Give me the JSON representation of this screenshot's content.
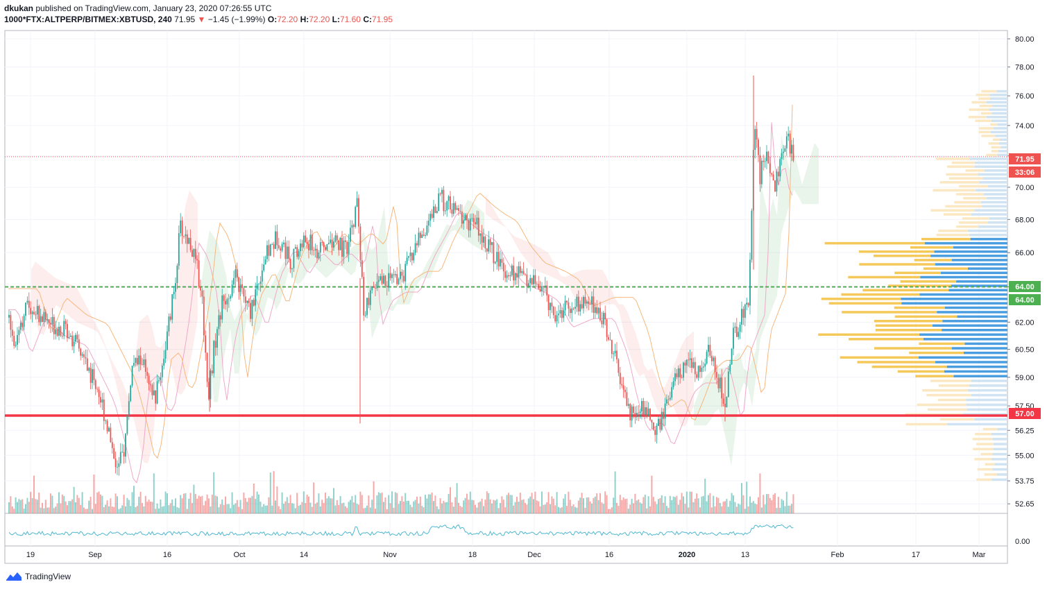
{
  "header": {
    "author": "dkukan",
    "published_text": "published on TradingView.com, January 23, 2020 07:26:55 UTC",
    "symbol": "1000*FTX:ALTPERP/BITMEX:XBTUSD, 240",
    "last": "71.95",
    "change_arrow": "▼",
    "change": "−1.45 (−1.99%)",
    "o_label": "O:",
    "o_value": "72.20",
    "h_label": "H:",
    "h_value": "72.20",
    "l_label": "L:",
    "l_value": "71.60",
    "c_label": "C:",
    "c_value": "71.95"
  },
  "footer": {
    "brand": "TradingView",
    "logo_icon": "tradingview-logo-icon"
  },
  "chart_data": {
    "type": "candlestick",
    "price_axis": {
      "ticks": [
        "80.00",
        "78.00",
        "76.00",
        "74.00",
        "72.00",
        "70.00",
        "68.00",
        "66.00",
        "64.00",
        "62.00",
        "60.50",
        "59.00",
        "57.50",
        "56.25",
        "55.00",
        "53.75",
        "52.65"
      ],
      "ylim": [
        52.2,
        80.6
      ],
      "scale": "log"
    },
    "indicator_axis": {
      "ticks": [
        "0.00"
      ]
    },
    "time_axis": {
      "ticks": [
        "19",
        "Sep",
        "16",
        "Oct",
        "14",
        "Nov",
        "18",
        "Dec",
        "16",
        "2020",
        "13",
        "Feb",
        "17",
        "Mar"
      ]
    },
    "price_labels": [
      {
        "text": "71.95",
        "value": 71.95,
        "color": "#ef5350"
      },
      {
        "text": "33:06",
        "color": "#ef5350"
      },
      {
        "text": "64.00",
        "value": 64.0,
        "color": "#4caf50"
      },
      {
        "text": "64.00",
        "color": "#4caf50"
      },
      {
        "text": "57.00",
        "value": 57.0,
        "color": "#f23645"
      }
    ],
    "horizontal_lines": [
      {
        "value": 64.0,
        "color": "#4caf50",
        "style": "dashed"
      },
      {
        "value": 57.0,
        "color": "#f23645",
        "style": "solid"
      },
      {
        "value": 71.95,
        "color": "#ef5350",
        "style": "dotted"
      }
    ],
    "price_path": [
      [
        0,
        63.5
      ],
      [
        20,
        61.0
      ],
      [
        40,
        63.0
      ],
      [
        70,
        62.0
      ],
      [
        100,
        61.5
      ],
      [
        120,
        60.0
      ],
      [
        140,
        58.5
      ],
      [
        155,
        56.5
      ],
      [
        170,
        54.2
      ],
      [
        180,
        55.5
      ],
      [
        190,
        59.5
      ],
      [
        205,
        60.0
      ],
      [
        215,
        58.2
      ],
      [
        225,
        58.0
      ],
      [
        240,
        61.0
      ],
      [
        250,
        63.5
      ],
      [
        260,
        67.5
      ],
      [
        275,
        66.5
      ],
      [
        290,
        64.0
      ],
      [
        300,
        58.0
      ],
      [
        310,
        61.0
      ],
      [
        320,
        63.0
      ],
      [
        340,
        64.5
      ],
      [
        360,
        62.5
      ],
      [
        380,
        65.5
      ],
      [
        400,
        67.0
      ],
      [
        420,
        65.5
      ],
      [
        440,
        66.8
      ],
      [
        460,
        66.0
      ],
      [
        480,
        66.8
      ],
      [
        500,
        66.0
      ],
      [
        515,
        69.0
      ],
      [
        520,
        65.0
      ],
      [
        525,
        62.5
      ],
      [
        540,
        64.0
      ],
      [
        560,
        64.5
      ],
      [
        580,
        64.5
      ],
      [
        600,
        66.5
      ],
      [
        620,
        68.0
      ],
      [
        635,
        69.3
      ],
      [
        655,
        68.5
      ],
      [
        670,
        68.0
      ],
      [
        690,
        67.5
      ],
      [
        710,
        66.0
      ],
      [
        730,
        65.0
      ],
      [
        760,
        64.5
      ],
      [
        780,
        64.0
      ],
      [
        800,
        62.5
      ],
      [
        830,
        63.0
      ],
      [
        860,
        63.0
      ],
      [
        880,
        61.0
      ],
      [
        895,
        58.5
      ],
      [
        910,
        57.0
      ],
      [
        930,
        57.5
      ],
      [
        945,
        56.2
      ],
      [
        960,
        57.5
      ],
      [
        975,
        59.0
      ],
      [
        990,
        59.5
      ],
      [
        1010,
        59.5
      ],
      [
        1025,
        60.5
      ],
      [
        1035,
        59.0
      ],
      [
        1045,
        57.3
      ],
      [
        1055,
        61.0
      ],
      [
        1070,
        62.5
      ],
      [
        1080,
        63.5
      ],
      [
        1087,
        75.0
      ],
      [
        1095,
        70.5
      ],
      [
        1105,
        72.5
      ],
      [
        1115,
        70.0
      ],
      [
        1125,
        71.5
      ],
      [
        1135,
        73.0
      ],
      [
        1145,
        71.95
      ]
    ],
    "volume_profile_note": "visible range volume profile on right edge (blue/yellow bars)"
  }
}
